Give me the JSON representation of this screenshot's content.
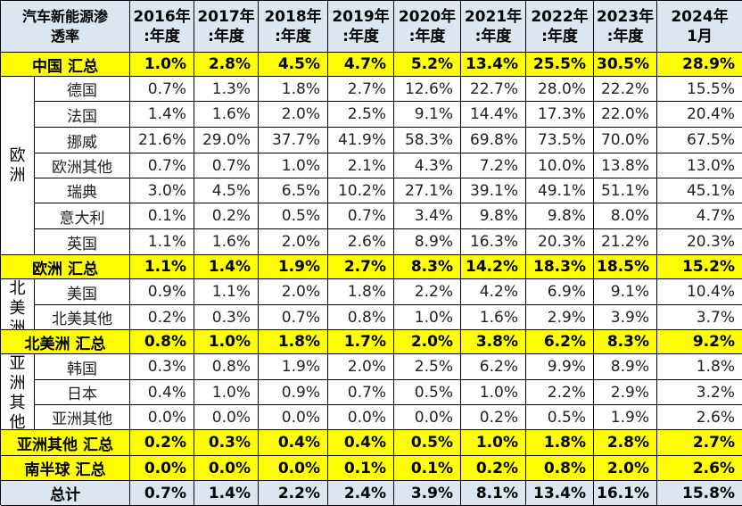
{
  "header": {
    "title_line1": "汽车新能源渗",
    "title_line2": "透率",
    "years": [
      {
        "top": "2016年",
        "bottom": ":年度"
      },
      {
        "top": "2017年",
        "bottom": ":年度"
      },
      {
        "top": "2018年",
        "bottom": ":年度"
      },
      {
        "top": "2019年",
        "bottom": ":年度"
      },
      {
        "top": "2020年",
        "bottom": ":年度"
      },
      {
        "top": "2021年",
        "bottom": ":年度"
      },
      {
        "top": "2022年",
        "bottom": ":年度"
      },
      {
        "top": "2023年",
        "bottom": ":年度"
      },
      {
        "top": "2024年",
        "bottom": "1月"
      }
    ]
  },
  "rows": [
    {
      "type": "sum",
      "label": "中国 汇总",
      "values": [
        "1.0%",
        "2.8%",
        "4.5%",
        "4.7%",
        "5.2%",
        "13.4%",
        "25.5%",
        "30.5%",
        "28.9%"
      ]
    },
    {
      "type": "sub",
      "label": "德国",
      "values": [
        "0.7%",
        "1.3%",
        "1.8%",
        "2.7%",
        "12.6%",
        "22.7%",
        "28.0%",
        "22.2%",
        "15.5%"
      ]
    },
    {
      "type": "sub",
      "label": "法国",
      "values": [
        "1.4%",
        "1.6%",
        "2.0%",
        "2.5%",
        "9.1%",
        "14.4%",
        "17.3%",
        "22.0%",
        "20.4%"
      ]
    },
    {
      "type": "sub",
      "label": "挪威",
      "values": [
        "21.6%",
        "29.0%",
        "37.7%",
        "41.9%",
        "58.3%",
        "69.8%",
        "73.5%",
        "70.0%",
        "67.5%"
      ]
    },
    {
      "type": "sub",
      "label": "欧洲其他",
      "values": [
        "0.7%",
        "0.7%",
        "1.0%",
        "2.1%",
        "4.3%",
        "7.2%",
        "10.0%",
        "13.8%",
        "13.0%"
      ]
    },
    {
      "type": "sub",
      "label": "瑞典",
      "values": [
        "3.0%",
        "4.5%",
        "6.5%",
        "10.2%",
        "27.1%",
        "39.1%",
        "49.1%",
        "51.1%",
        "45.1%"
      ]
    },
    {
      "type": "sub",
      "label": "意大利",
      "values": [
        "0.1%",
        "0.2%",
        "0.5%",
        "0.7%",
        "3.4%",
        "9.8%",
        "9.8%",
        "8.0%",
        "4.7%"
      ]
    },
    {
      "type": "sub",
      "label": "英国",
      "values": [
        "1.1%",
        "1.6%",
        "2.0%",
        "2.6%",
        "8.9%",
        "16.3%",
        "20.3%",
        "21.2%",
        "20.3%"
      ]
    },
    {
      "type": "sum",
      "label": "欧洲 汇总",
      "values": [
        "1.1%",
        "1.4%",
        "1.9%",
        "2.7%",
        "8.3%",
        "14.2%",
        "18.3%",
        "18.5%",
        "15.2%"
      ]
    },
    {
      "type": "sub",
      "label": "美国",
      "values": [
        "0.9%",
        "1.1%",
        "2.0%",
        "1.8%",
        "2.2%",
        "4.2%",
        "6.9%",
        "9.1%",
        "10.4%"
      ]
    },
    {
      "type": "sub",
      "label": "北美其他",
      "values": [
        "0.2%",
        "0.3%",
        "0.7%",
        "0.8%",
        "1.0%",
        "1.6%",
        "2.9%",
        "3.9%",
        "3.7%"
      ]
    },
    {
      "type": "sum",
      "label": "北美洲 汇总",
      "values": [
        "0.8%",
        "1.0%",
        "1.8%",
        "1.7%",
        "2.0%",
        "3.8%",
        "6.2%",
        "8.3%",
        "9.2%"
      ]
    },
    {
      "type": "sub",
      "label": "韩国",
      "values": [
        "0.3%",
        "0.8%",
        "1.9%",
        "2.0%",
        "2.5%",
        "6.2%",
        "9.9%",
        "8.9%",
        "1.8%"
      ]
    },
    {
      "type": "sub",
      "label": "日本",
      "values": [
        "0.4%",
        "1.0%",
        "0.9%",
        "0.7%",
        "0.5%",
        "1.0%",
        "2.2%",
        "2.9%",
        "3.2%"
      ]
    },
    {
      "type": "sub",
      "label": "亚洲其他",
      "values": [
        "0.0%",
        "0.0%",
        "0.0%",
        "0.0%",
        "0.0%",
        "0.2%",
        "0.5%",
        "1.9%",
        "2.6%"
      ]
    },
    {
      "type": "sum",
      "label": "亚洲其他 汇总",
      "values": [
        "0.2%",
        "0.3%",
        "0.4%",
        "0.4%",
        "0.5%",
        "1.0%",
        "1.8%",
        "2.8%",
        "2.7%"
      ]
    },
    {
      "type": "sum",
      "label": "南半球 汇总",
      "values": [
        "0.0%",
        "0.0%",
        "0.0%",
        "0.1%",
        "0.1%",
        "0.2%",
        "0.8%",
        "2.0%",
        "2.6%"
      ]
    },
    {
      "type": "total",
      "label": "总计",
      "values": [
        "0.7%",
        "1.4%",
        "2.2%",
        "2.4%",
        "3.9%",
        "8.1%",
        "13.4%",
        "16.1%",
        "15.8%"
      ]
    }
  ],
  "regions": [
    {
      "name": "europe",
      "chars": [
        "欧",
        "洲"
      ],
      "start_row": 1,
      "span": 7
    },
    {
      "name": "north-america",
      "chars": [
        "北",
        "美",
        "洲"
      ],
      "start_row": 9,
      "span": 2
    },
    {
      "name": "asia",
      "chars": [
        "亚",
        "洲",
        "其",
        "他"
      ],
      "start_row": 12,
      "span": 3
    }
  ],
  "colors": {
    "header_bg": "#dce6f1",
    "summary_bg": "#ffff00",
    "total_bg": "#dce6f1",
    "border": "#000000"
  }
}
